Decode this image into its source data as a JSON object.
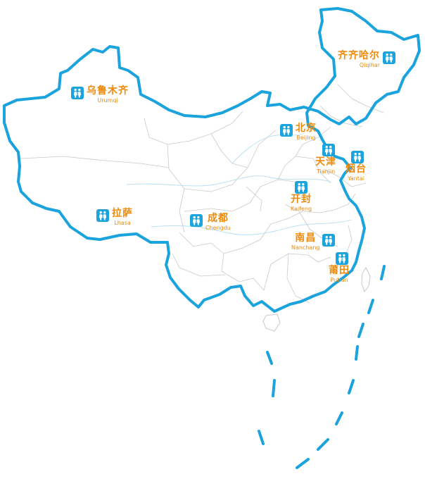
{
  "colors": {
    "border": "#1aa3dc",
    "internal": "#c9c9c9",
    "label": "#ef8a0c",
    "badge": "#1aa3dc"
  },
  "badge_icon": "two-children-icon",
  "cities": [
    {
      "id": "qiqihar",
      "zh": "齐齐哈尔",
      "en": "Qiqihar"
    },
    {
      "id": "urumqi",
      "zh": "乌鲁木齐",
      "en": "Urumqi"
    },
    {
      "id": "beijing",
      "zh": "北京",
      "en": "Beijing"
    },
    {
      "id": "tianjin",
      "zh": "天津",
      "en": "Tianjin"
    },
    {
      "id": "yantai",
      "zh": "烟台",
      "en": "Yantai"
    },
    {
      "id": "kaifeng",
      "zh": "开封",
      "en": "Kaifeng"
    },
    {
      "id": "lhasa",
      "zh": "拉萨",
      "en": "Lhasa"
    },
    {
      "id": "chengdu",
      "zh": "成都",
      "en": "Chengdu"
    },
    {
      "id": "nanchang",
      "zh": "南昌",
      "en": "Nanchang"
    },
    {
      "id": "putian",
      "zh": "莆田",
      "en": "Putian"
    }
  ]
}
